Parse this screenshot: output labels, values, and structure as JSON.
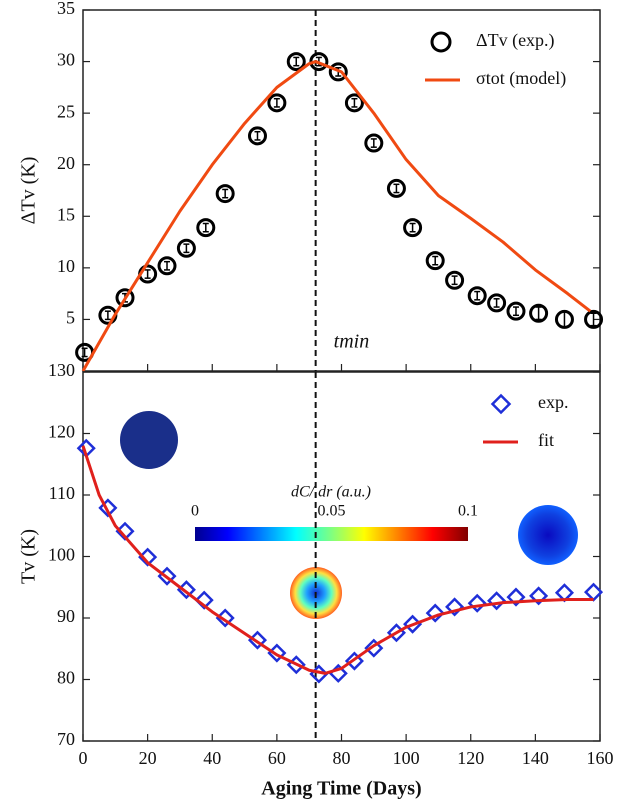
{
  "chart_data": [
    {
      "type": "scatter",
      "ylabel": "ΔTv (K)",
      "xlim": [
        0,
        160
      ],
      "xticks": [
        0,
        20,
        40,
        60,
        80,
        100,
        120,
        140,
        160
      ],
      "ylim": [
        0,
        35
      ],
      "yticks": [
        5,
        10,
        15,
        20,
        25,
        30,
        35
      ],
      "vline": 72,
      "annotation": "tmin",
      "legend": "upper right",
      "series": [
        {
          "name": "ΔTv (exp.)",
          "color": "#000000",
          "marker": "circle",
          "x": [
            0.5,
            7.7,
            13,
            20,
            26,
            32,
            38,
            44,
            54,
            60,
            66,
            73,
            79,
            84,
            90,
            97,
            102,
            109,
            115,
            122,
            128,
            134,
            141,
            149,
            158
          ],
          "values": [
            1.8,
            5.4,
            7.1,
            9.4,
            10.2,
            11.9,
            13.9,
            17.2,
            22.8,
            26,
            30,
            30,
            29,
            26,
            22.1,
            17.7,
            13.9,
            10.7,
            8.8,
            7.3,
            6.6,
            5.8,
            5.6,
            5.0,
            5.0
          ],
          "errors": [
            0.4,
            0.4,
            0.4,
            0.4,
            0.4,
            0.4,
            0.4,
            0.4,
            0.4,
            0.4,
            0.4,
            0.4,
            0.4,
            0.4,
            0.4,
            0.4,
            0.4,
            0.4,
            0.4,
            0.4,
            0.4,
            0.4,
            0.6,
            0.8,
            0.6
          ]
        },
        {
          "name": "σtot (model)",
          "color": "#f04a12",
          "marker": null,
          "x": [
            0,
            10,
            20,
            30,
            40,
            50,
            60,
            70,
            72,
            80,
            90,
            100,
            110,
            120,
            130,
            140,
            150,
            157
          ],
          "values": [
            0,
            5.5,
            10.5,
            15.5,
            20,
            24,
            27.5,
            29.8,
            30,
            29,
            25,
            20.5,
            17,
            14.8,
            12.5,
            9.8,
            7.5,
            5.8
          ]
        }
      ]
    },
    {
      "type": "scatter",
      "xlabel": "Aging Time (Days)",
      "ylabel": "Tv (K)",
      "xlim": [
        0,
        160
      ],
      "xticks": [
        0,
        20,
        40,
        60,
        80,
        100,
        120,
        140,
        160
      ],
      "ylim": [
        70,
        130
      ],
      "yticks": [
        70,
        80,
        90,
        100,
        110,
        120,
        130
      ],
      "vline": 72,
      "legend": "upper right",
      "colorbar": {
        "label": "dC/ dr (a.u.)",
        "ticks": [
          0,
          0.05,
          0.1
        ]
      },
      "series": [
        {
          "name": "exp.",
          "color": "#1f2fd8",
          "marker": "diamond",
          "x": [
            1,
            7.7,
            13,
            20,
            26,
            32,
            37.5,
            44,
            54,
            60,
            66,
            73,
            79,
            84,
            90,
            97,
            102,
            109,
            115,
            122,
            128,
            134,
            141,
            149,
            158
          ],
          "values": [
            117.6,
            107.9,
            104.1,
            99.9,
            96.8,
            94.6,
            92.9,
            90,
            86.4,
            84.3,
            82.4,
            80.9,
            81,
            83,
            85.1,
            87.6,
            89,
            90.8,
            91.8,
            92.4,
            92.8,
            93.4,
            93.6,
            94.1,
            94.2
          ]
        },
        {
          "name": "fit",
          "color": "#e0201c",
          "marker": null,
          "x": [
            0,
            5,
            10,
            20,
            30,
            40,
            50,
            60,
            70,
            75,
            80,
            90,
            100,
            110,
            120,
            130,
            140,
            150,
            158
          ],
          "values": [
            118,
            110,
            105,
            99,
            95,
            91,
            87.5,
            84,
            81.5,
            81,
            81.8,
            85.5,
            88.5,
            90.5,
            91.8,
            92.5,
            92.8,
            93,
            93
          ]
        }
      ]
    }
  ]
}
